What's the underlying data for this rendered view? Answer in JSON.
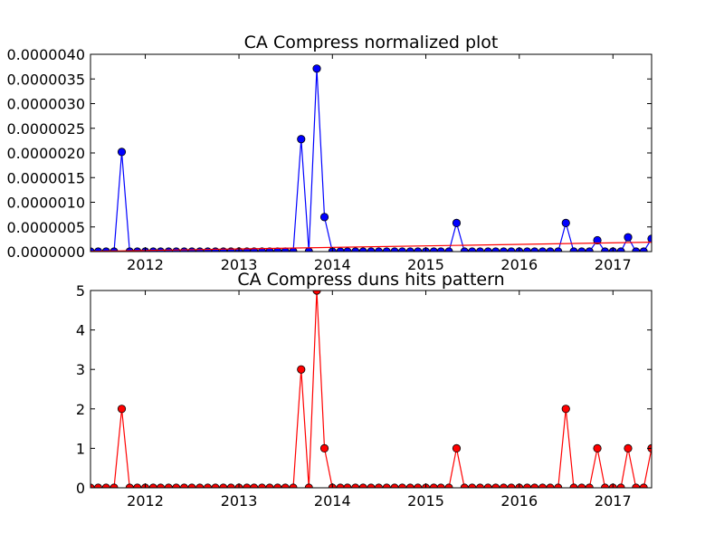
{
  "chart_data": [
    {
      "type": "line",
      "title": "CA Compress normalized plot",
      "xlabel": "",
      "ylabel": "",
      "xlim": [
        "2011-06-01",
        "2017-06-01"
      ],
      "ylim": [
        0,
        4e-06
      ],
      "xticks": [
        "2012",
        "2013",
        "2014",
        "2015",
        "2016",
        "2017"
      ],
      "yticks": [
        "0.0000000",
        "0.0000005",
        "0.0000010",
        "0.0000015",
        "0.0000020",
        "0.0000025",
        "0.0000030",
        "0.0000035",
        "0.0000040"
      ],
      "grid": false,
      "colors": {
        "series": "#0000ff",
        "trend": "#ff0000",
        "frame": "#000000"
      },
      "x": [
        "2011-06-01",
        "2011-07-01",
        "2011-08-01",
        "2011-09-01",
        "2011-10-01",
        "2011-11-01",
        "2011-12-01",
        "2012-01-01",
        "2012-02-01",
        "2012-03-01",
        "2012-04-01",
        "2012-05-01",
        "2012-06-01",
        "2012-07-01",
        "2012-08-01",
        "2012-09-01",
        "2012-10-01",
        "2012-11-01",
        "2012-12-01",
        "2013-01-01",
        "2013-02-01",
        "2013-03-01",
        "2013-04-01",
        "2013-05-01",
        "2013-06-01",
        "2013-07-01",
        "2013-08-01",
        "2013-09-01",
        "2013-10-01",
        "2013-11-01",
        "2013-12-01",
        "2014-01-01",
        "2014-02-01",
        "2014-03-01",
        "2014-04-01",
        "2014-05-01",
        "2014-06-01",
        "2014-07-01",
        "2014-08-01",
        "2014-09-01",
        "2014-10-01",
        "2014-11-01",
        "2014-12-01",
        "2015-01-01",
        "2015-02-01",
        "2015-03-01",
        "2015-04-01",
        "2015-05-01",
        "2015-06-01",
        "2015-07-01",
        "2015-08-01",
        "2015-09-01",
        "2015-10-01",
        "2015-11-01",
        "2015-12-01",
        "2016-01-01",
        "2016-02-01",
        "2016-03-01",
        "2016-04-01",
        "2016-05-01",
        "2016-06-01",
        "2016-07-01",
        "2016-08-01",
        "2016-09-01",
        "2016-10-01",
        "2016-11-01",
        "2016-12-01",
        "2017-01-01",
        "2017-02-01",
        "2017-03-01",
        "2017-04-01",
        "2017-05-01",
        "2017-06-01"
      ],
      "series": [
        {
          "values": [
            0,
            0,
            0,
            0,
            2.02e-06,
            0,
            0,
            0,
            0,
            0,
            0,
            0,
            0,
            0,
            0,
            0,
            0,
            0,
            0,
            0,
            0,
            0,
            0,
            0,
            0,
            0,
            0,
            2.28e-06,
            0,
            3.71e-06,
            7e-07,
            0,
            0,
            0,
            0,
            0,
            0,
            0,
            0,
            0,
            0,
            0,
            0,
            0,
            0,
            0,
            0,
            5.8e-07,
            0,
            0,
            0,
            0,
            0,
            0,
            0,
            0,
            0,
            0,
            0,
            0,
            0,
            5.8e-07,
            0,
            0,
            0,
            2.3e-07,
            0,
            0,
            0,
            2.9e-07,
            0,
            0,
            2.6e-07
          ]
        },
        {
          "kind": "trend",
          "x": [
            "2011-06-01",
            "2017-06-01"
          ],
          "values": [
            5e-09,
            1.9e-07
          ]
        }
      ]
    },
    {
      "type": "line",
      "title": "CA Compress duns hits pattern",
      "xlabel": "",
      "ylabel": "",
      "xlim": [
        "2011-06-01",
        "2017-06-01"
      ],
      "ylim": [
        0,
        5
      ],
      "xticks": [
        "2012",
        "2013",
        "2014",
        "2015",
        "2016",
        "2017"
      ],
      "yticks": [
        "0",
        "1",
        "2",
        "3",
        "4",
        "5"
      ],
      "grid": false,
      "colors": {
        "series": "#ff0000",
        "marker": "#ff0000",
        "frame": "#000000"
      },
      "x": [
        "2011-06-01",
        "2011-07-01",
        "2011-08-01",
        "2011-09-01",
        "2011-10-01",
        "2011-11-01",
        "2011-12-01",
        "2012-01-01",
        "2012-02-01",
        "2012-03-01",
        "2012-04-01",
        "2012-05-01",
        "2012-06-01",
        "2012-07-01",
        "2012-08-01",
        "2012-09-01",
        "2012-10-01",
        "2012-11-01",
        "2012-12-01",
        "2013-01-01",
        "2013-02-01",
        "2013-03-01",
        "2013-04-01",
        "2013-05-01",
        "2013-06-01",
        "2013-07-01",
        "2013-08-01",
        "2013-09-01",
        "2013-10-01",
        "2013-11-01",
        "2013-12-01",
        "2014-01-01",
        "2014-02-01",
        "2014-03-01",
        "2014-04-01",
        "2014-05-01",
        "2014-06-01",
        "2014-07-01",
        "2014-08-01",
        "2014-09-01",
        "2014-10-01",
        "2014-11-01",
        "2014-12-01",
        "2015-01-01",
        "2015-02-01",
        "2015-03-01",
        "2015-04-01",
        "2015-05-01",
        "2015-06-01",
        "2015-07-01",
        "2015-08-01",
        "2015-09-01",
        "2015-10-01",
        "2015-11-01",
        "2015-12-01",
        "2016-01-01",
        "2016-02-01",
        "2016-03-01",
        "2016-04-01",
        "2016-05-01",
        "2016-06-01",
        "2016-07-01",
        "2016-08-01",
        "2016-09-01",
        "2016-10-01",
        "2016-11-01",
        "2016-12-01",
        "2017-01-01",
        "2017-02-01",
        "2017-03-01",
        "2017-04-01",
        "2017-05-01",
        "2017-06-01"
      ],
      "series": [
        {
          "values": [
            0,
            0,
            0,
            0,
            2,
            0,
            0,
            0,
            0,
            0,
            0,
            0,
            0,
            0,
            0,
            0,
            0,
            0,
            0,
            0,
            0,
            0,
            0,
            0,
            0,
            0,
            0,
            3,
            0,
            5,
            1,
            0,
            0,
            0,
            0,
            0,
            0,
            0,
            0,
            0,
            0,
            0,
            0,
            0,
            0,
            0,
            0,
            1,
            0,
            0,
            0,
            0,
            0,
            0,
            0,
            0,
            0,
            0,
            0,
            0,
            0,
            2,
            0,
            0,
            0,
            1,
            0,
            0,
            0,
            1,
            0,
            0,
            1
          ]
        }
      ]
    }
  ]
}
